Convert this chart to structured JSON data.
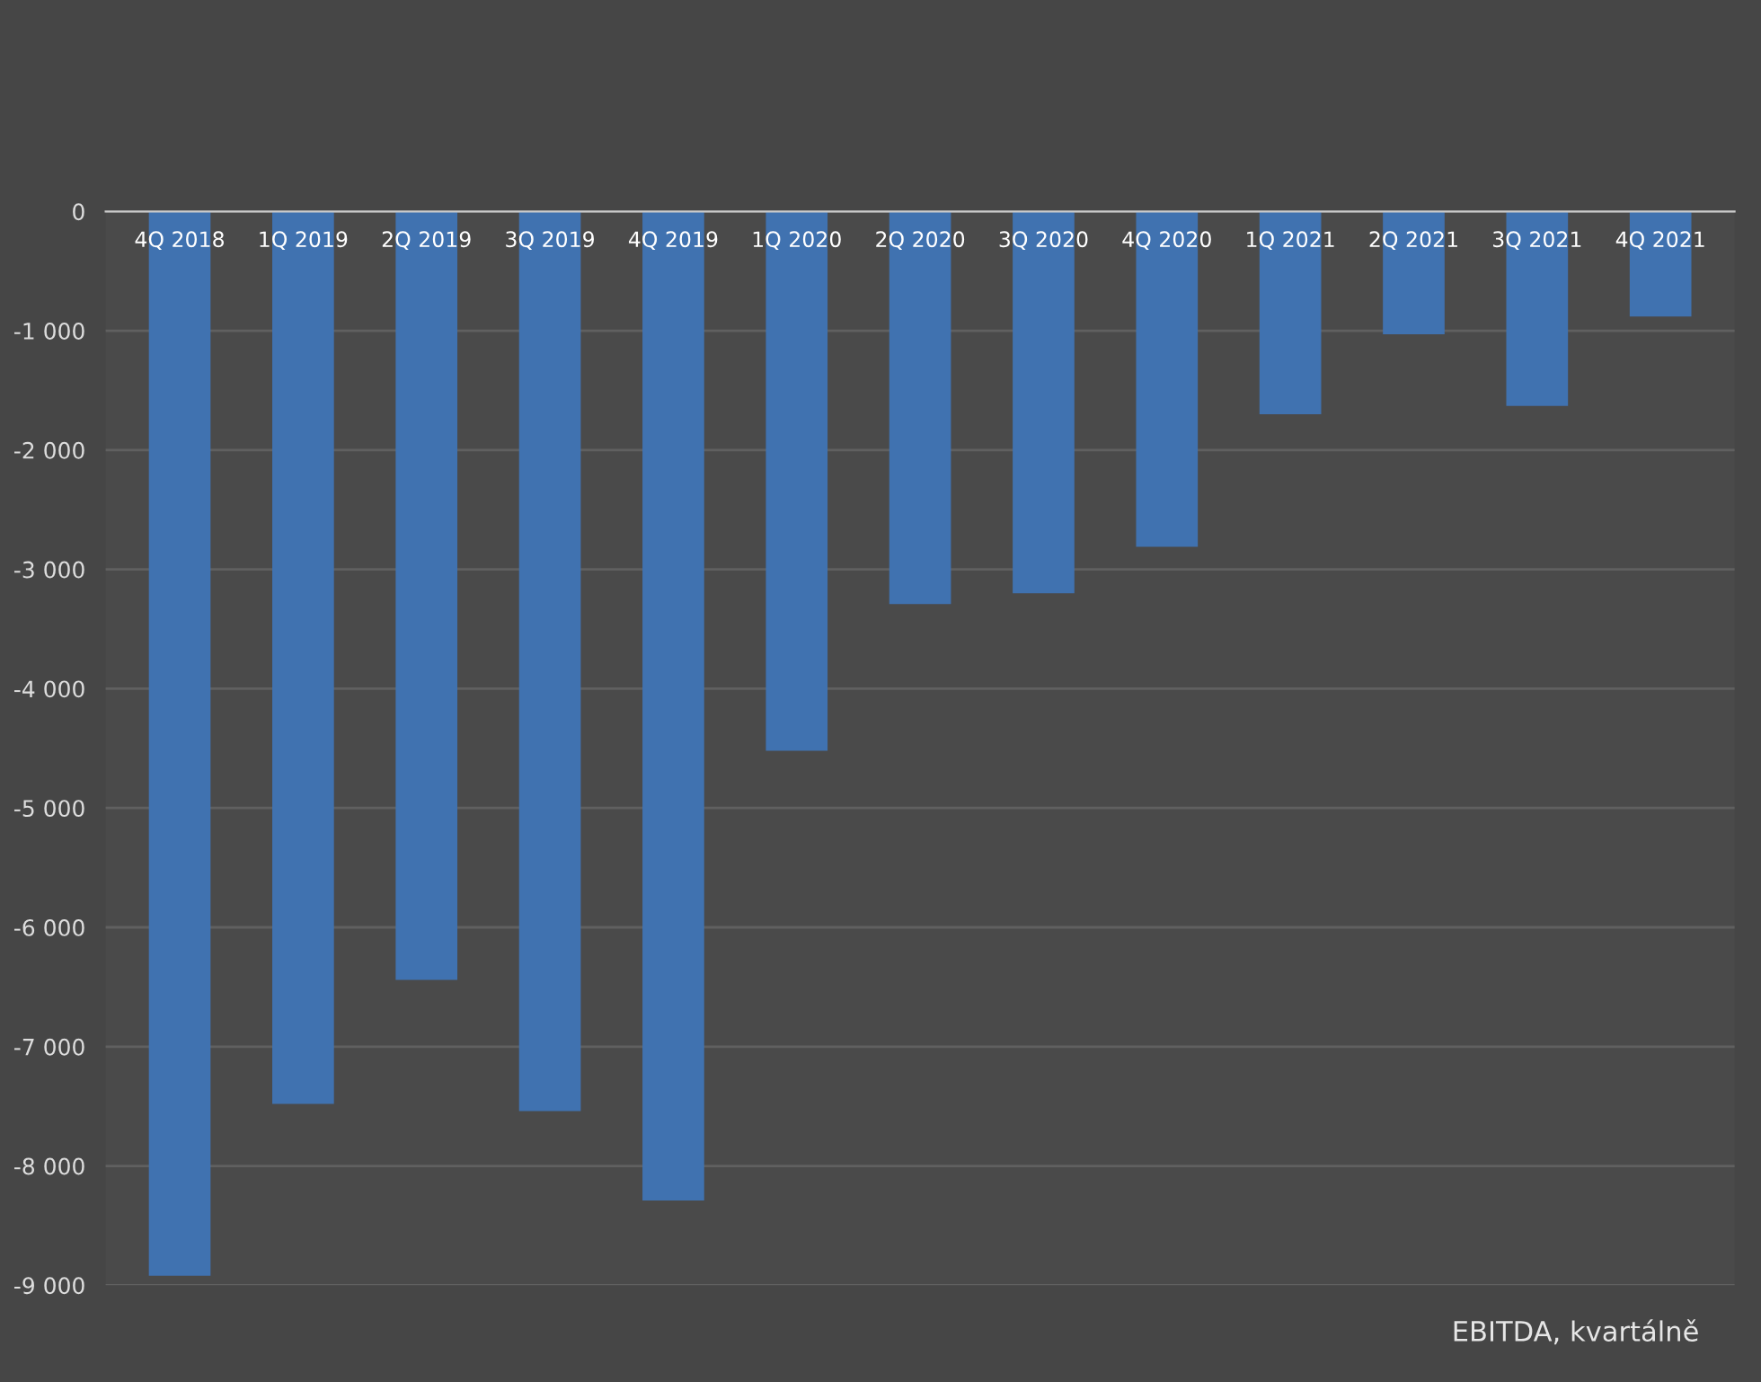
{
  "chart_data": {
    "type": "bar",
    "categories": [
      "4Q 2018",
      "1Q 2019",
      "2Q 2019",
      "3Q 2019",
      "4Q 2019",
      "1Q 2020",
      "2Q 2020",
      "3Q 2020",
      "4Q 2020",
      "1Q 2021",
      "2Q 2021",
      "3Q 2021",
      "4Q 2021"
    ],
    "values": [
      -8920,
      -7480,
      -6440,
      -7540,
      -8290,
      -4520,
      -3290,
      -3200,
      -2810,
      -1700,
      -1030,
      -1630,
      -880
    ],
    "color": "#4072b0",
    "ylim": [
      -9000,
      0
    ],
    "yticks": [
      {
        "value": -9000,
        "label": "-9 000"
      },
      {
        "value": -8000,
        "label": "-8 000"
      },
      {
        "value": -7000,
        "label": "-7 000"
      },
      {
        "value": -6000,
        "label": "-6 000"
      },
      {
        "value": -5000,
        "label": "-5 000"
      },
      {
        "value": -4000,
        "label": "-4 000"
      },
      {
        "value": -3000,
        "label": "-3 000"
      },
      {
        "value": -2000,
        "label": "-2 000"
      },
      {
        "value": -1000,
        "label": "-1 000"
      },
      0
    ],
    "grid": "y",
    "annotations": [
      "EBITDA, kvartálně"
    ]
  }
}
